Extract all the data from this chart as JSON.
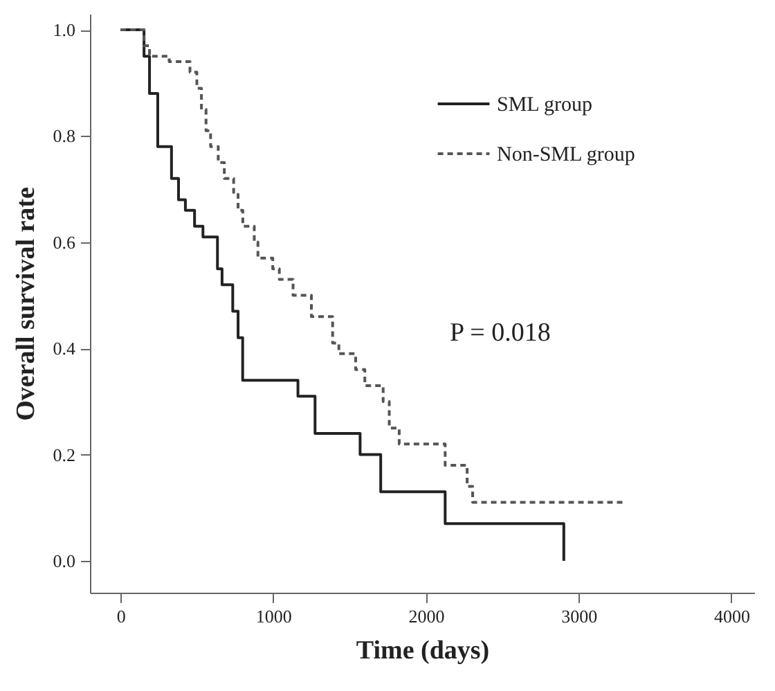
{
  "chart_data": {
    "type": "step",
    "xlabel": "Time (days)",
    "ylabel": "Overall survival rate",
    "xlim": [
      -200,
      4150
    ],
    "ylim": [
      -0.06,
      1.03
    ],
    "xticks": [
      0,
      1000,
      2000,
      3000,
      4000
    ],
    "yticks": [
      {
        "value": 0,
        "label": "0.0"
      },
      {
        "value": 0.2,
        "label": "0.2"
      },
      {
        "value": 0.4,
        "label": "0.4"
      },
      {
        "value": 0.6,
        "label": "0.6"
      },
      {
        "value": 0.8,
        "label": "0.8"
      },
      {
        "value": 1,
        "label": "1.0"
      }
    ],
    "grid": false,
    "legend": "top right",
    "marker": "none",
    "annotations": [
      "P = 0.018"
    ],
    "series": [
      {
        "name": "SML group",
        "color": "#222222",
        "line_style": "solid",
        "x": [
          0,
          154,
          190,
          244,
          334,
          380,
          425,
          485,
          540,
          635,
          665,
          735,
          770,
          800,
          1162,
          1274,
          1569,
          1704,
          2126,
          2903
        ],
        "values": [
          1.0,
          0.95,
          0.88,
          0.78,
          0.72,
          0.68,
          0.66,
          0.63,
          0.61,
          0.55,
          0.52,
          0.47,
          0.42,
          0.34,
          0.31,
          0.24,
          0.2,
          0.13,
          0.07,
          0.0
        ]
      },
      {
        "name": "Non-SML group",
        "color": "#555555",
        "line_style": "dashed",
        "x": [
          0,
          154,
          190,
          319,
          455,
          500,
          530,
          560,
          590,
          640,
          680,
          741,
          770,
          801,
          876,
          900,
          997,
          1040,
          1130,
          1250,
          1389,
          1430,
          1540,
          1600,
          1720,
          1760,
          1825,
          2126,
          2270,
          2306,
          3291
        ],
        "values": [
          1.0,
          0.97,
          0.95,
          0.94,
          0.92,
          0.89,
          0.85,
          0.81,
          0.78,
          0.75,
          0.72,
          0.69,
          0.66,
          0.63,
          0.6,
          0.57,
          0.55,
          0.53,
          0.5,
          0.46,
          0.41,
          0.39,
          0.36,
          0.33,
          0.3,
          0.25,
          0.22,
          0.18,
          0.14,
          0.11,
          0.11
        ]
      }
    ]
  }
}
